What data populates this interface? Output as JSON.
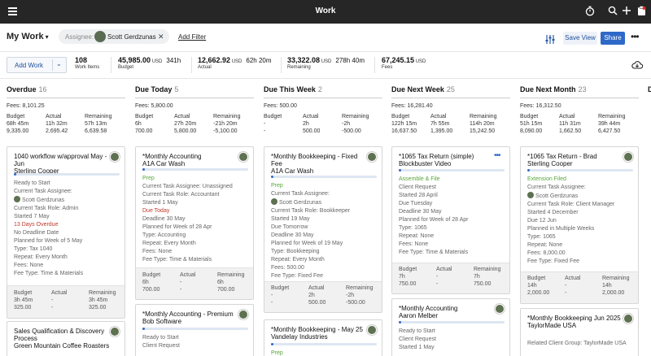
{
  "app": {
    "title": "Work"
  },
  "header": {
    "title": "My Work",
    "filter_label": "Assignee:",
    "filter_value": "Scott Gerdzunas",
    "add_filter": "Add Filter",
    "save_view": "Save View",
    "share": "Share"
  },
  "summary": {
    "add_work": "Add Work",
    "stats": [
      {
        "value": "108",
        "label": "Work Items"
      },
      {
        "value": "45,985.00",
        "unit": "USD",
        "time": "341h",
        "label": "Budget"
      },
      {
        "value": "12,662.92",
        "unit": "USD",
        "time": "62h 20m",
        "label": "Actual"
      },
      {
        "value": "33,322.08",
        "unit": "USD",
        "time": "278h 40m",
        "label": "Remaining"
      },
      {
        "value": "67,245.15",
        "unit": "USD",
        "label": "Fees"
      }
    ]
  },
  "columns": [
    {
      "title": "Overdue",
      "count": "16",
      "fees": "Fees: 8,101.25",
      "headers": [
        "Budget",
        "Actual",
        "Remaining"
      ],
      "time": [
        "68h 45m",
        "11h 32m",
        "57h 13m"
      ],
      "money": [
        "9,335.00",
        "2,695.42",
        "6,639.58"
      ]
    },
    {
      "title": "Due Today",
      "count": "5",
      "fees": "Fees: 5,800.00",
      "headers": [
        "Budget",
        "Actual",
        "Remaining"
      ],
      "time": [
        "6h",
        "27h 20m",
        "-21h 20m"
      ],
      "money": [
        "700.00",
        "5,800.00",
        "-5,100.00"
      ]
    },
    {
      "title": "Due This Week",
      "count": "2",
      "fees": "Fees: 500.00",
      "headers": [
        "Budget",
        "Actual",
        "Remaining"
      ],
      "time": [
        "-",
        "2h",
        "-2h"
      ],
      "money": [
        "-",
        "500.00",
        "-500.00"
      ]
    },
    {
      "title": "Due Next Week",
      "count": "25",
      "fees": "Fees: 16,281.40",
      "headers": [
        "Budget",
        "Actual",
        "Remaining"
      ],
      "time": [
        "122h 15m",
        "7h 55m",
        "114h 20m"
      ],
      "money": [
        "16,637.50",
        "1,395.00",
        "15,242.50"
      ]
    },
    {
      "title": "Due Next Month",
      "count": "23",
      "fees": "Fees: 16,312.50",
      "headers": [
        "Budget",
        "Actual",
        "Remaining"
      ],
      "time": [
        "51h 15m",
        "11h 31m",
        "39h 44m"
      ],
      "money": [
        "8,090.00",
        "1,662.50",
        "6,427.50"
      ]
    }
  ],
  "cards": {
    "c0a": {
      "title": "1040 workflow w/approval May - Jun\nSterling Cooper",
      "progress": 0.02,
      "lines": [
        "Ready to Start",
        "Current Task Assignee:",
        "Scott Gerdzunas",
        "Current Task Role: Admin",
        "Started 7 May",
        "13 Days Overdue",
        "No Deadline Date",
        "Planned for Week of 5 May",
        "Type: Tax 1040",
        "Repeat: Every Month",
        "Fees: None",
        "Fee Type: Time & Materials"
      ],
      "foot": {
        "h": [
          "Budget",
          "Actual",
          "Remaining"
        ],
        "t": [
          "3h 45m",
          "-",
          "3h 45m"
        ],
        "m": [
          "325.00",
          "-",
          "325.00"
        ]
      }
    },
    "c0b": {
      "title": "Sales Qualification & Discovery Process\nGreen Mountain Coffee Roasters"
    },
    "c1a": {
      "title": "*Monthly Accounting\nA1A Car Wash",
      "progress": 0.02,
      "lines": [
        "Prep",
        "Current Task Assignee:   Unassigned",
        "Current Task Role: Accountant",
        "Started 1 May",
        "Due Today",
        "Deadline 30 May",
        "Planned for Week of 28 Apr",
        "Type: Accounting",
        "Repeat: Every Month",
        "Fees: None",
        "Fee Type: Time & Materials"
      ],
      "foot": {
        "h": [
          "Budget",
          "Actual",
          "Remaining"
        ],
        "t": [
          "6h",
          "-",
          "6h"
        ],
        "m": [
          "700.00",
          "-",
          "700.00"
        ]
      }
    },
    "c1b": {
      "title": "*Monthly Accounting - Premium\nBob Software",
      "lines": [
        "Ready to Start",
        "Client Request"
      ]
    },
    "c2a": {
      "title": "*Monthly Bookkeeping - Fixed Fee\nA1A Car Wash",
      "progress": 0.02,
      "lines": [
        "Prep",
        "Current Task Assignee:",
        "Scott Gerdzunas",
        "Current Task Role: Bookkeeper",
        "Started 19 May",
        "Due Tomorrow",
        "Deadline 30 May",
        "Planned for Week of 19 May",
        "Type: Bookkeeping",
        "Repeat: Every Month",
        "Fees: 500.00",
        "Fee Type: Fixed Fee"
      ],
      "foot": {
        "h": [
          "Budget",
          "Actual",
          "Remaining"
        ],
        "t": [
          "-",
          "2h",
          "-2h"
        ],
        "m": [
          "-",
          "500.00",
          "-500.00"
        ]
      }
    },
    "c2b": {
      "title": "*Monthly Bookkeeping - May 25\nVandelay Industries",
      "lines": [
        "Prep"
      ]
    },
    "c3a": {
      "title": "*1065 Tax Return (simple)\nBlockbuster Video",
      "progress": 0.02,
      "lines": [
        "Assemble & File",
        "Client Request",
        "Started 28 April",
        "Due Tuesday",
        "Deadline 30 May",
        "Planned for Week of 28 Apr",
        "Type: 1065",
        "Repeat: None",
        "Fees: None",
        "Fee Type: Time & Materials"
      ],
      "foot": {
        "h": [
          "Budget",
          "Actual",
          "Remaining"
        ],
        "t": [
          "7h",
          "-",
          "7h"
        ],
        "m": [
          "750.00",
          "-",
          "750.00"
        ]
      }
    },
    "c3b": {
      "title": "*Monthly Accounting\nAaron Melber",
      "lines": [
        "Ready to Start",
        "Client Request",
        "Started 1 May"
      ]
    },
    "c4a": {
      "title": "*1065 Tax Return - Brad\nSterling Cooper",
      "progress": 0.02,
      "lines": [
        "Extension Filed",
        "Current Task Assignee:",
        "Scott Gerdzunas",
        "Current Task Role: Client Manager",
        "Started 4 December",
        "Due 12 Jun",
        "Planned in Multiple Weeks",
        "Type: 1065",
        "Repeat: None",
        "Fees: 8,000.00",
        "Fee Type: Fixed Fee"
      ],
      "foot": {
        "h": [
          "Budget",
          "Actual",
          "Remaining"
        ],
        "t": [
          "14h",
          "-",
          "14h"
        ],
        "m": [
          "2,000.00",
          "-",
          "2,000.00"
        ]
      }
    },
    "c4b": {
      "title": "*Monthly Bookkeeping Jun 2025\nTaylorMade USA",
      "lines": [
        "Related Client Group: TaylorMade USA"
      ]
    }
  }
}
